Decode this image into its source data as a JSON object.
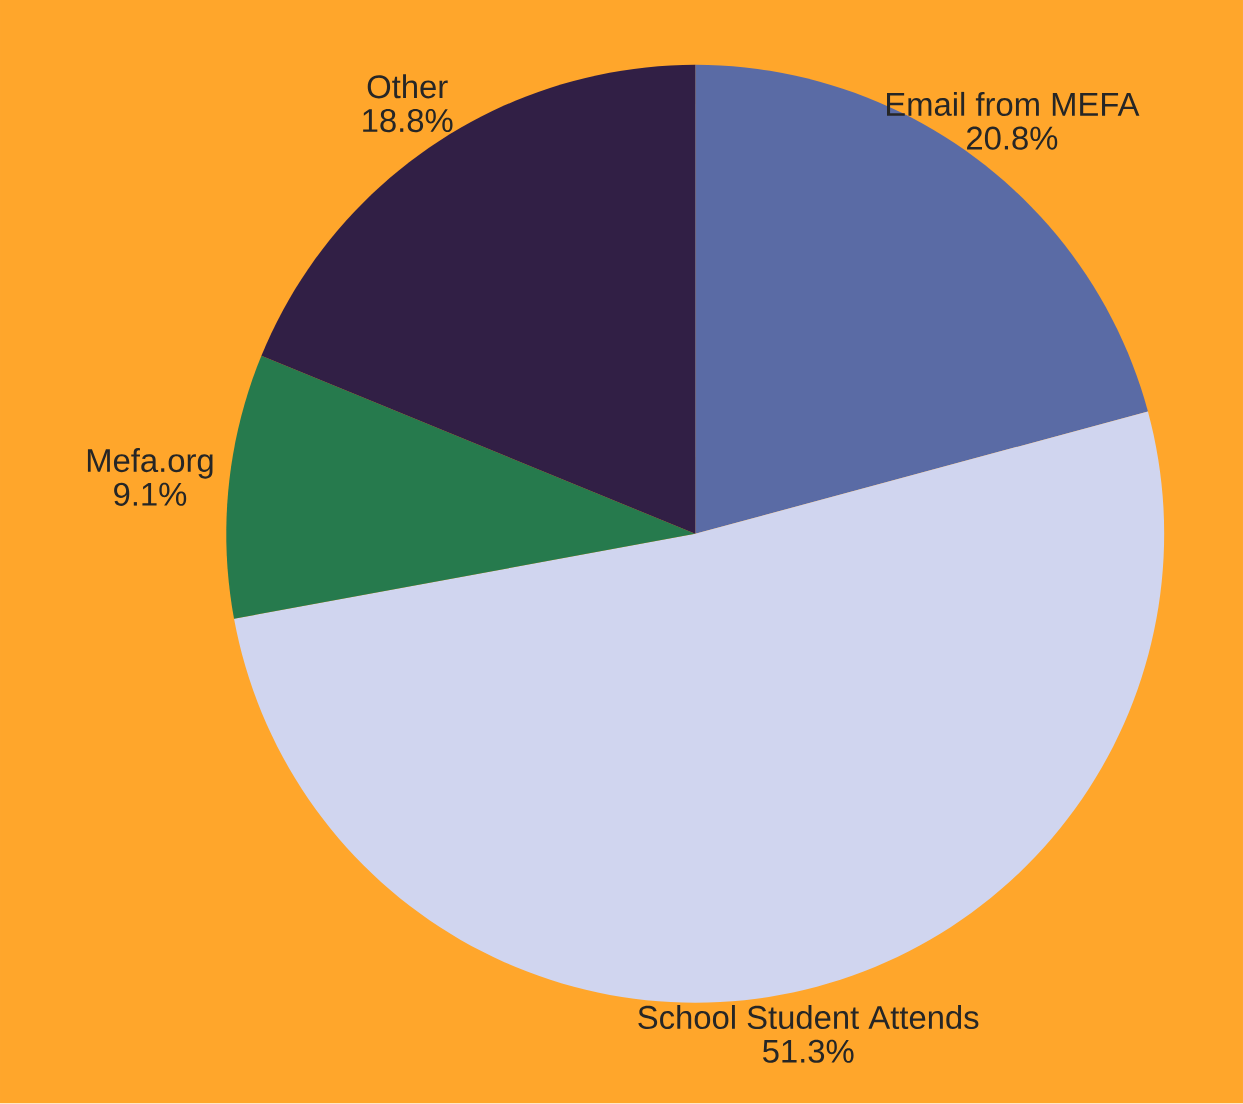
{
  "chart_data": {
    "type": "pie",
    "categories": [
      "Email from MEFA",
      "School Student Attends",
      "Mefa.org",
      "Other"
    ],
    "values": [
      20.8,
      51.3,
      9.1,
      18.8
    ],
    "colors": [
      "#5a6ba5",
      "#d0d5ef",
      "#267a4d",
      "#311f45"
    ],
    "value_labels": [
      "20.8%",
      "51.3%",
      "9.1%",
      "18.8%"
    ]
  }
}
